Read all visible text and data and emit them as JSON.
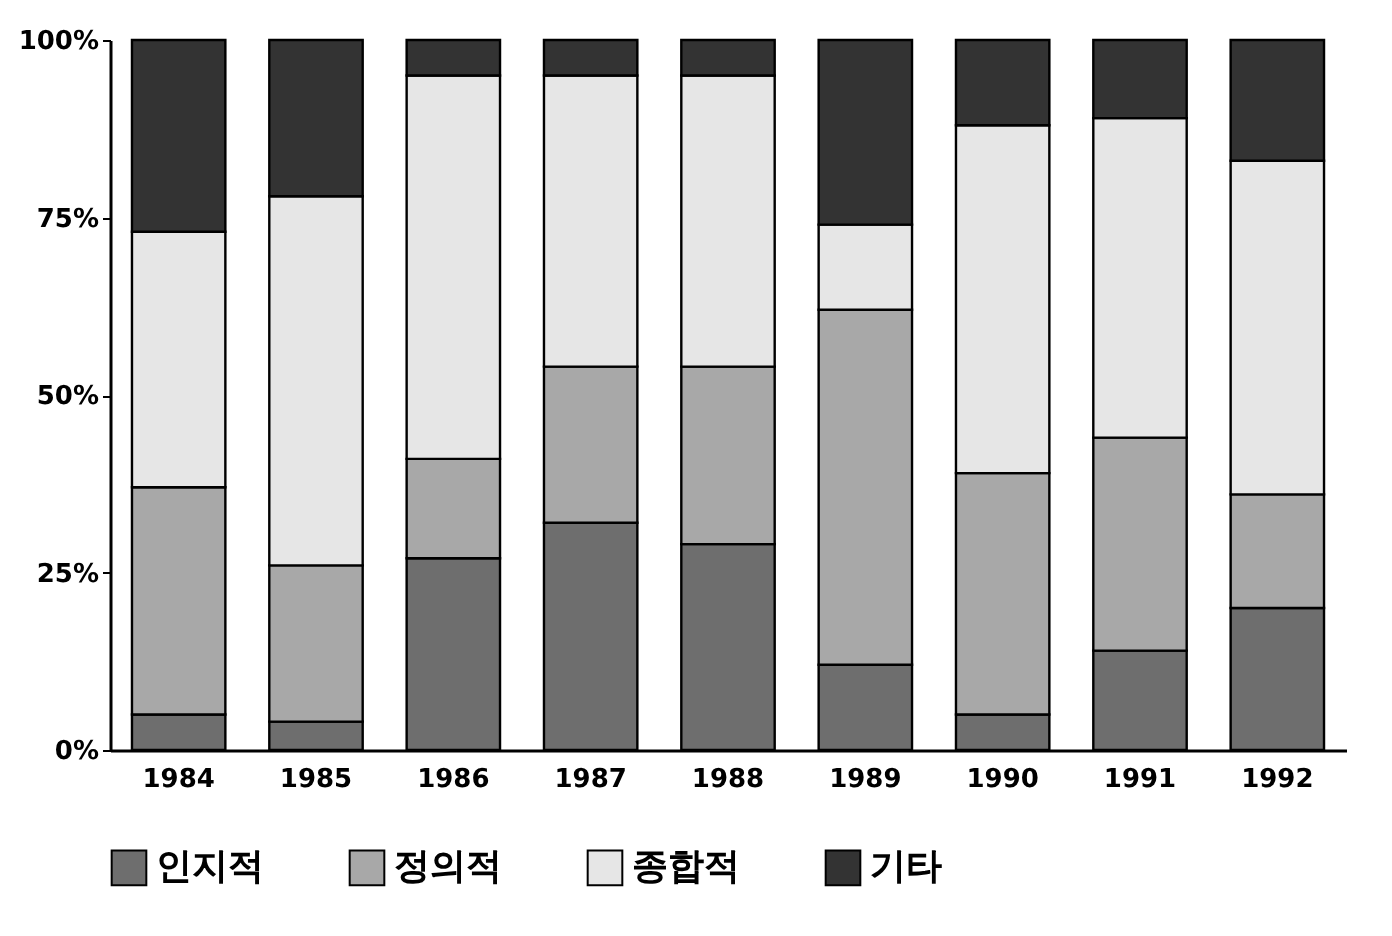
{
  "chart_data": {
    "type": "bar",
    "stacked": true,
    "categories": [
      "1984",
      "1985",
      "1986",
      "1987",
      "1988",
      "1989",
      "1990",
      "1991",
      "1992"
    ],
    "series": [
      {
        "name": "인지적",
        "color": "#6e6e6e",
        "values": [
          5,
          4,
          27,
          32,
          29,
          12,
          5,
          14,
          20
        ]
      },
      {
        "name": "정의적",
        "color": "#a8a8a8",
        "values": [
          32,
          22,
          14,
          22,
          25,
          50,
          34,
          30,
          16
        ]
      },
      {
        "name": "종합적",
        "color": "#e6e6e6",
        "values": [
          36,
          52,
          54,
          41,
          41,
          12,
          49,
          45,
          47
        ]
      },
      {
        "name": "기타",
        "color": "#333333",
        "values": [
          27,
          22,
          5,
          5,
          5,
          26,
          12,
          11,
          17
        ]
      }
    ],
    "ylim": [
      0,
      100
    ],
    "yticks": [
      {
        "value": 0,
        "label": "0%"
      },
      {
        "value": 25,
        "label": "25%"
      },
      {
        "value": 50,
        "label": "50%"
      },
      {
        "value": 75,
        "label": "75%"
      },
      {
        "value": 100,
        "label": "100%"
      }
    ],
    "grid": false,
    "legend": "bottom"
  }
}
